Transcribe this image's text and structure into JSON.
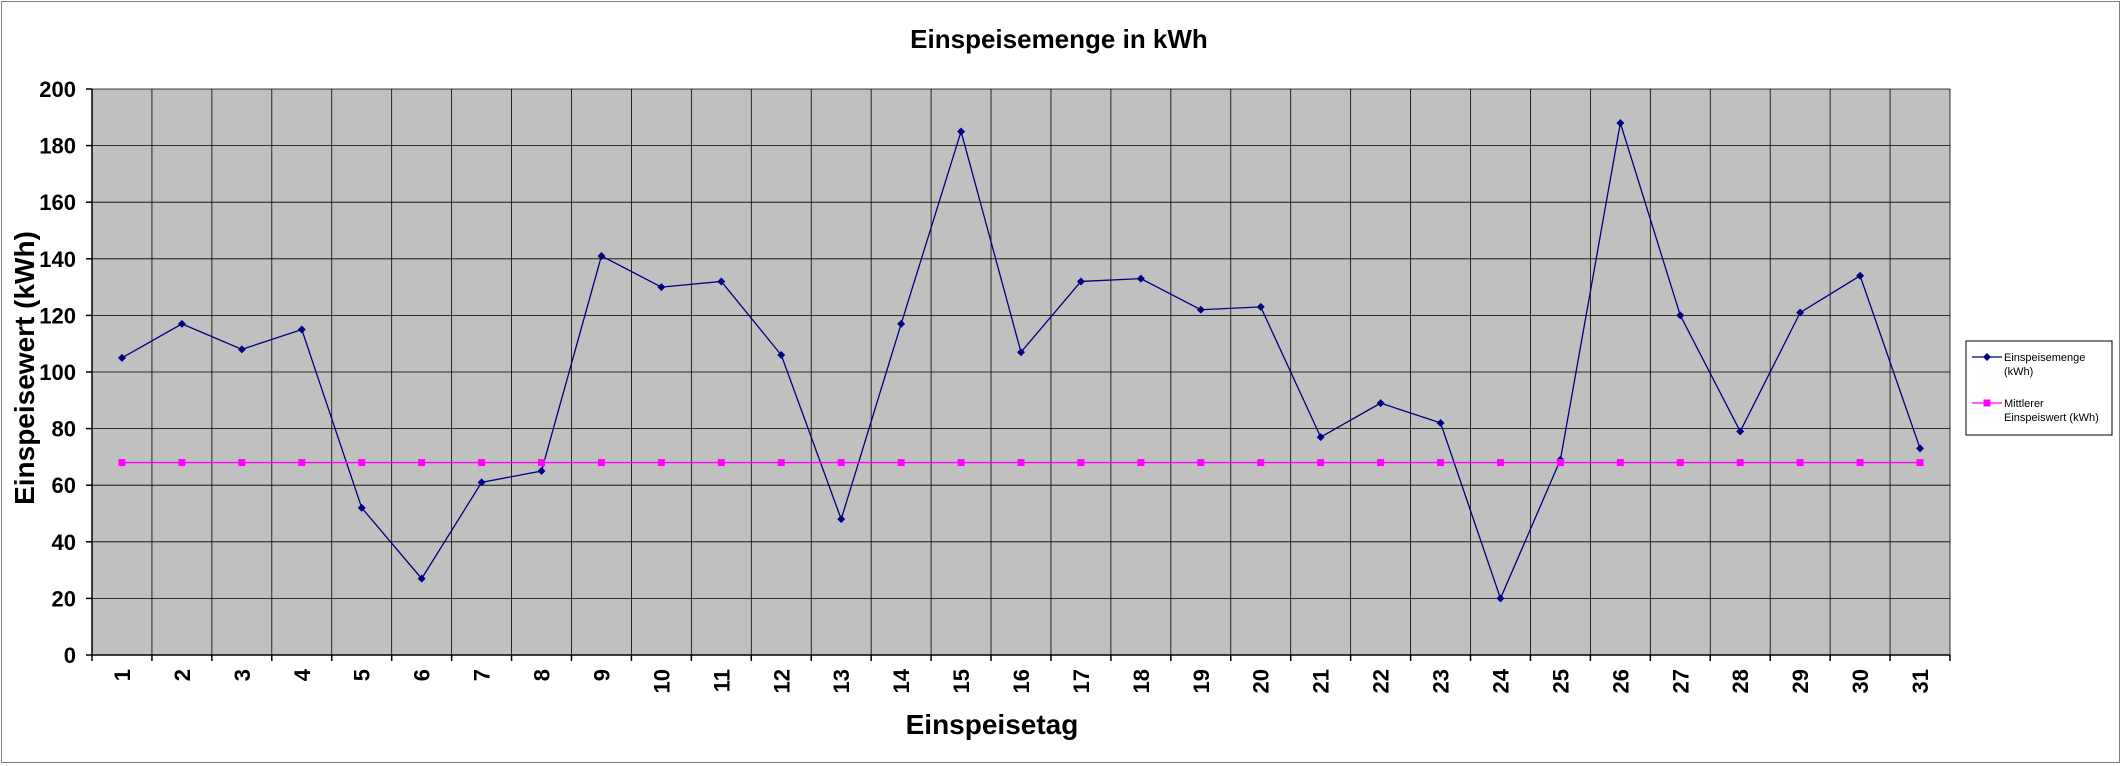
{
  "chart_data": {
    "type": "line",
    "title": "Einspeisemenge in kWh",
    "xlabel": "Einspeisetag",
    "ylabel": "Einspeisewert (kWh)",
    "ylim": [
      0,
      200
    ],
    "ytick_step": 20,
    "grid": true,
    "legend_position": "right",
    "plot_background": "#c0c0c0",
    "categories": [
      "1",
      "2",
      "3",
      "4",
      "5",
      "6",
      "7",
      "8",
      "9",
      "10",
      "11",
      "12",
      "13",
      "14",
      "15",
      "16",
      "17",
      "18",
      "19",
      "20",
      "21",
      "22",
      "23",
      "24",
      "25",
      "26",
      "27",
      "28",
      "29",
      "30",
      "31"
    ],
    "series": [
      {
        "name": "Einspeisemenge (kWh)",
        "legend_lines": [
          "Einspeisemenge",
          "(kWh)"
        ],
        "color": "#000080",
        "marker": "diamond",
        "values": [
          105,
          117,
          108,
          115,
          52,
          27,
          61,
          65,
          141,
          130,
          132,
          106,
          48,
          117,
          185,
          107,
          132,
          133,
          122,
          123,
          77,
          89,
          82,
          20,
          69,
          188,
          120,
          79,
          121,
          134,
          73
        ]
      },
      {
        "name": "Mittlerer Einspeiswert (kWh)",
        "legend_lines": [
          "Mittlerer",
          "Einspeiswert (kWh)"
        ],
        "color": "#ff00ff",
        "marker": "square",
        "values": [
          68,
          68,
          68,
          68,
          68,
          68,
          68,
          68,
          68,
          68,
          68,
          68,
          68,
          68,
          68,
          68,
          68,
          68,
          68,
          68,
          68,
          68,
          68,
          68,
          68,
          68,
          68,
          68,
          68,
          68,
          68
        ]
      }
    ]
  }
}
